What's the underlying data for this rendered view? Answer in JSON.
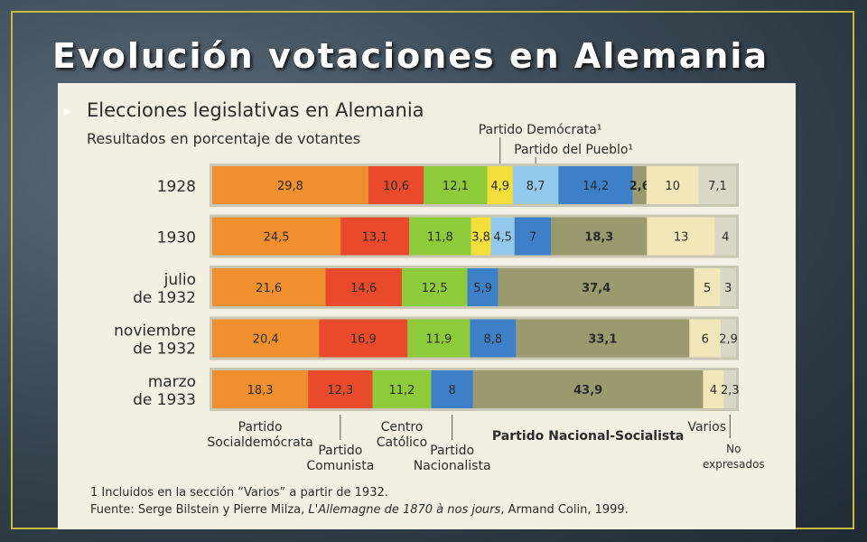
{
  "slide": {
    "title": "Evolución votaciones en Alemania"
  },
  "chart_data": {
    "type": "bar",
    "orientation": "horizontal-stacked-100",
    "title": "Elecciones legislativas en Alemania",
    "subtitle": "Resultados en porcentaje de votantes",
    "categories": [
      "1928",
      "1930",
      "julio de 1932",
      "noviembre de 1932",
      "marzo de 1933"
    ],
    "category_lines": [
      [
        "1928"
      ],
      [
        "1930"
      ],
      [
        "julio",
        "de 1932"
      ],
      [
        "noviembre",
        "de 1932"
      ],
      [
        "marzo",
        "de 1933"
      ]
    ],
    "series": [
      {
        "name": "Partido Socialdemócrata",
        "color": "#ef8f2e",
        "values": [
          29.8,
          24.5,
          21.6,
          20.4,
          18.3
        ],
        "labels": [
          "29,8",
          "24,5",
          "21,6",
          "20,4",
          "18,3"
        ]
      },
      {
        "name": "Partido Comunista",
        "color": "#ea4a2c",
        "values": [
          10.6,
          13.1,
          14.6,
          16.9,
          12.3
        ],
        "labels": [
          "10,6",
          "13,1",
          "14,6",
          "16,9",
          "12,3"
        ]
      },
      {
        "name": "Centro Católico",
        "color": "#8ecb3a",
        "values": [
          12.1,
          11.8,
          12.5,
          11.9,
          11.2
        ],
        "labels": [
          "12,1",
          "11,8",
          "12,5",
          "11,9",
          "11,2"
        ]
      },
      {
        "name": "Partido Demócrata¹",
        "color": "#f4de3b",
        "values": [
          4.9,
          3.8,
          null,
          null,
          null
        ],
        "labels": [
          "4,9",
          "3,8",
          "",
          "",
          ""
        ]
      },
      {
        "name": "Partido del Pueblo¹",
        "color": "#92c9ec",
        "values": [
          8.7,
          4.5,
          null,
          null,
          null
        ],
        "labels": [
          "8,7",
          "4,5",
          "",
          "",
          ""
        ]
      },
      {
        "name": "Partido Nacionalista",
        "color": "#3d80c8",
        "values": [
          14.2,
          7,
          5.9,
          8.8,
          8
        ],
        "labels": [
          "14,2",
          "7",
          "5,9",
          "8,8",
          "8"
        ]
      },
      {
        "name": "Partido Nacional-Socialista",
        "color": "#9a9a6e",
        "values": [
          2.6,
          18.3,
          37.4,
          33.1,
          43.9
        ],
        "labels": [
          "2,6",
          "18,3",
          "37,4",
          "33,1",
          "43,9"
        ]
      },
      {
        "name": "Varios",
        "color": "#f2e7b8",
        "values": [
          10,
          13,
          5,
          6,
          4
        ],
        "labels": [
          "10",
          "13",
          "5",
          "6",
          "4"
        ]
      },
      {
        "name": "No expresados",
        "color": "#d9d7c5",
        "values": [
          7.1,
          4,
          3,
          2.9,
          2.3
        ],
        "labels": [
          "7,1",
          "4",
          "3",
          "2,9",
          "2,3"
        ]
      }
    ],
    "bold_series": [
      "Partido Nacional-Socialista"
    ],
    "bottom_labels": [
      {
        "series": "Partido Socialdemócrata",
        "lines": [
          "Partido",
          "Socialdemócrata"
        ]
      },
      {
        "series": "Partido Comunista",
        "lines": [
          "Partido",
          "Comunista"
        ]
      },
      {
        "series": "Centro Católico",
        "lines": [
          "Centro",
          "Católico"
        ]
      },
      {
        "series": "Partido Nacionalista",
        "lines": [
          "Partido",
          "Nacionalista"
        ]
      },
      {
        "series": "Partido Nacional-Socialista",
        "lines": [
          "Partido Nacional-Socialista"
        ]
      },
      {
        "series": "Varios",
        "lines": [
          "Varios"
        ]
      },
      {
        "series": "No expresados",
        "lines": [
          "No",
          "expresados"
        ]
      }
    ],
    "top_labels": [
      {
        "series": "Partido Demócrata¹",
        "text": "Partido Demócrata¹"
      },
      {
        "series": "Partido del Pueblo¹",
        "text": "Partido del Pueblo¹"
      }
    ],
    "footnote": "1 Incluidos en la sección “Varios” a partir de 1932.",
    "source_prefix": "Fuente: Serge Bilstein y Pierre Milza, ",
    "source_title": "L'Allemagne de 1870 à nos jours",
    "source_suffix": ", Armand Colin, 1999."
  }
}
